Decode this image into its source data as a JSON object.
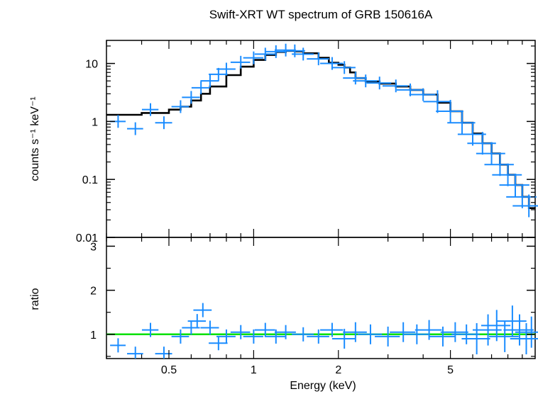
{
  "chart_data": [
    {
      "type": "scatter",
      "title": "Swift-XRT WT spectrum of GRB 150616A",
      "ylabel": "counts s⁻¹ keV⁻¹",
      "xscale": "log",
      "yscale": "log",
      "xlim": [
        0.3,
        10
      ],
      "ylim": [
        0.01,
        25
      ],
      "yticks": [
        {
          "value": 0.01,
          "label": "0.01"
        },
        {
          "value": 0.1,
          "label": "0.1"
        },
        {
          "value": 1,
          "label": "1"
        },
        {
          "value": 10,
          "label": "10"
        }
      ],
      "series": [
        {
          "kind": "data-crosses",
          "color": "#1a8cff",
          "x": [
            0.33,
            0.38,
            0.43,
            0.48,
            0.55,
            0.6,
            0.65,
            0.7,
            0.75,
            0.8,
            0.9,
            1.0,
            1.1,
            1.2,
            1.3,
            1.4,
            1.5,
            1.7,
            1.9,
            2.1,
            2.3,
            2.5,
            2.8,
            3.2,
            3.6,
            4.0,
            4.5,
            5.0,
            5.5,
            6.0,
            6.5,
            7.0,
            7.5,
            8.0,
            8.5,
            9.0,
            9.5
          ],
          "y": [
            1.0,
            0.75,
            1.6,
            0.95,
            1.8,
            2.6,
            3.8,
            5.0,
            6.5,
            8.0,
            10.5,
            12.5,
            14.5,
            16.0,
            17.0,
            16.5,
            14.5,
            12.0,
            10.0,
            8.5,
            5.6,
            5.0,
            4.6,
            4.1,
            3.5,
            2.9,
            2.2,
            1.5,
            0.95,
            0.6,
            0.42,
            0.28,
            0.18,
            0.12,
            0.08,
            0.05,
            0.035
          ]
        },
        {
          "kind": "model-histogram",
          "color": "#000000",
          "x": [
            0.3,
            0.4,
            0.5,
            0.55,
            0.6,
            0.65,
            0.7,
            0.8,
            0.9,
            1.0,
            1.1,
            1.2,
            1.3,
            1.4,
            1.5,
            1.7,
            1.85,
            2.0,
            2.1,
            2.2,
            2.3,
            2.5,
            2.8,
            3.2,
            3.6,
            4.0,
            4.5,
            5.0,
            5.5,
            6.0,
            6.5,
            7.0,
            7.5,
            8.0,
            8.5,
            9.0,
            9.5,
            10.0
          ],
          "y": [
            1.3,
            1.4,
            1.6,
            1.8,
            2.3,
            3.0,
            4.0,
            6.3,
            8.8,
            11.5,
            14.0,
            15.8,
            16.5,
            16.2,
            15.0,
            12.5,
            10.3,
            9.5,
            8.5,
            7.0,
            5.6,
            4.9,
            4.5,
            4.0,
            3.5,
            2.9,
            2.1,
            1.5,
            0.95,
            0.62,
            0.42,
            0.28,
            0.18,
            0.12,
            0.08,
            0.05,
            0.032,
            0.025
          ]
        }
      ]
    },
    {
      "type": "scatter",
      "xlabel": "Energy (keV)",
      "ylabel": "ratio",
      "xscale": "log",
      "xlim": [
        0.3,
        10
      ],
      "ylim": [
        0.45,
        3.2
      ],
      "xticks": [
        {
          "value": 0.5,
          "label": "0.5"
        },
        {
          "value": 1,
          "label": "1"
        },
        {
          "value": 2,
          "label": "2"
        },
        {
          "value": 5,
          "label": "5"
        }
      ],
      "yticks": [
        {
          "value": 1,
          "label": "1"
        },
        {
          "value": 2,
          "label": "2"
        },
        {
          "value": 3,
          "label": "3"
        }
      ],
      "reference_line": {
        "y": 1,
        "color": "#00e000"
      },
      "series": [
        {
          "kind": "ratio-crosses",
          "color": "#1a8cff",
          "x": [
            0.33,
            0.38,
            0.43,
            0.48,
            0.55,
            0.6,
            0.63,
            0.66,
            0.7,
            0.75,
            0.8,
            0.9,
            1.0,
            1.1,
            1.2,
            1.3,
            1.5,
            1.7,
            1.9,
            2.1,
            2.3,
            2.6,
            3.0,
            3.4,
            3.8,
            4.2,
            4.7,
            5.2,
            5.7,
            6.2,
            6.8,
            7.3,
            7.8,
            8.3,
            8.8,
            9.3,
            9.7
          ],
          "y": [
            0.75,
            0.56,
            1.1,
            0.56,
            0.95,
            1.15,
            1.3,
            1.55,
            1.15,
            0.8,
            0.95,
            1.05,
            0.95,
            1.1,
            0.95,
            1.05,
            1.0,
            0.95,
            1.1,
            0.9,
            1.05,
            1.0,
            0.95,
            1.05,
            1.0,
            1.1,
            0.95,
            1.05,
            1.0,
            0.9,
            1.1,
            1.2,
            0.95,
            1.3,
            1.1,
            0.9,
            1.05
          ]
        }
      ]
    }
  ]
}
